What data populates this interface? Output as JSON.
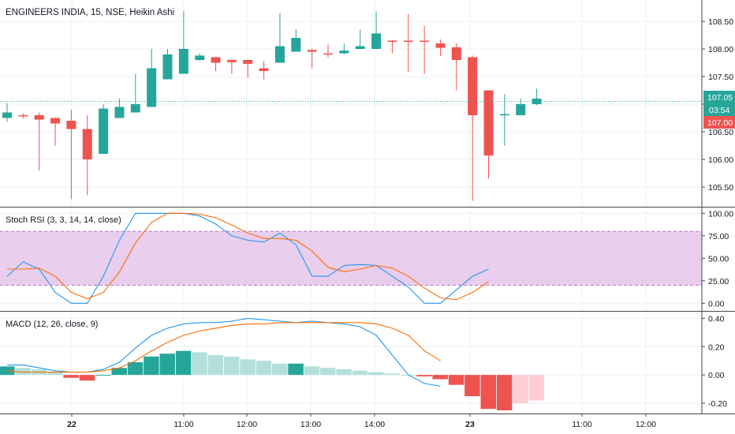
{
  "colors": {
    "up": "#26a69a",
    "down": "#ef5350",
    "macd_up_strong": "#26a69a",
    "macd_up_weak": "#b2dfdb",
    "macd_down_strong": "#ef5350",
    "macd_down_weak": "#ffcdd2",
    "stoch_k": "#2196f3",
    "stoch_d": "#ff6d00",
    "stoch_band": "#e1bee7",
    "stoch_band_line": "#9c27b0",
    "macd_line": "#2196f3",
    "signal_line": "#ff6d00",
    "last_price_line": "#26a69a",
    "grid": "#eef0f3",
    "border": "#434651"
  },
  "price_pane": {
    "title": "ENGINEERS INDIA, 15, NSE, Heikin Ashi",
    "last_price_tag": "107.05",
    "countdown_tag": "03:54",
    "prev_close_tag": "107.00"
  },
  "stoch_pane": {
    "title": "Stoch RSI (3, 3, 14, 14, close)"
  },
  "macd_pane": {
    "title": "MACD (12, 26, close, 9)"
  },
  "chart_data": [
    {
      "type": "candlestick",
      "title": "ENGINEERS INDIA, 15, NSE, Heikin Ashi",
      "ylim": [
        105.2,
        108.8
      ],
      "yticks": [
        "105.50",
        "106.00",
        "106.50",
        "107.00",
        "107.50",
        "108.00",
        "108.50"
      ],
      "x_ticks": [
        "22",
        "11:00",
        "12:00",
        "13:00",
        "14:00",
        "23",
        "11:00",
        "12:00"
      ],
      "last_price": 107.05,
      "candles": [
        {
          "o": 106.75,
          "h": 107.02,
          "l": 106.68,
          "c": 106.85
        },
        {
          "o": 106.8,
          "h": 106.84,
          "l": 106.74,
          "c": 106.79
        },
        {
          "o": 106.8,
          "h": 106.85,
          "l": 105.8,
          "c": 106.72
        },
        {
          "o": 106.75,
          "h": 106.76,
          "l": 106.25,
          "c": 106.65
        },
        {
          "o": 106.7,
          "h": 106.9,
          "l": 105.28,
          "c": 106.55
        },
        {
          "o": 106.55,
          "h": 106.8,
          "l": 105.35,
          "c": 106.0
        },
        {
          "o": 106.1,
          "h": 107.0,
          "l": 106.1,
          "c": 106.92
        },
        {
          "o": 106.75,
          "h": 107.1,
          "l": 106.75,
          "c": 106.95
        },
        {
          "o": 106.85,
          "h": 107.55,
          "l": 106.85,
          "c": 107.0
        },
        {
          "o": 106.95,
          "h": 108.0,
          "l": 106.95,
          "c": 107.65
        },
        {
          "o": 107.45,
          "h": 108.0,
          "l": 107.45,
          "c": 107.9
        },
        {
          "o": 107.55,
          "h": 108.68,
          "l": 107.55,
          "c": 108.0
        },
        {
          "o": 107.8,
          "h": 107.92,
          "l": 107.78,
          "c": 107.88
        },
        {
          "o": 107.85,
          "h": 107.86,
          "l": 107.6,
          "c": 107.75
        },
        {
          "o": 107.8,
          "h": 107.82,
          "l": 107.55,
          "c": 107.76
        },
        {
          "o": 107.8,
          "h": 107.8,
          "l": 107.48,
          "c": 107.73
        },
        {
          "o": 107.65,
          "h": 107.78,
          "l": 107.45,
          "c": 107.6
        },
        {
          "o": 107.75,
          "h": 108.65,
          "l": 107.75,
          "c": 108.05
        },
        {
          "o": 107.95,
          "h": 108.35,
          "l": 107.95,
          "c": 108.2
        },
        {
          "o": 107.98,
          "h": 108.0,
          "l": 107.65,
          "c": 107.95
        },
        {
          "o": 107.92,
          "h": 108.08,
          "l": 107.85,
          "c": 107.9
        },
        {
          "o": 107.92,
          "h": 108.1,
          "l": 107.9,
          "c": 107.97
        },
        {
          "o": 108.0,
          "h": 108.35,
          "l": 108.0,
          "c": 108.05
        },
        {
          "o": 108.0,
          "h": 108.68,
          "l": 108.0,
          "c": 108.28
        },
        {
          "o": 108.15,
          "h": 108.16,
          "l": 107.92,
          "c": 108.14
        },
        {
          "o": 108.15,
          "h": 108.63,
          "l": 107.58,
          "c": 108.13
        },
        {
          "o": 108.15,
          "h": 108.42,
          "l": 107.55,
          "c": 108.13
        },
        {
          "o": 108.1,
          "h": 108.17,
          "l": 107.87,
          "c": 108.02
        },
        {
          "o": 108.03,
          "h": 108.1,
          "l": 107.25,
          "c": 107.8
        },
        {
          "o": 107.85,
          "h": 107.88,
          "l": 105.25,
          "c": 106.8
        },
        {
          "o": 107.25,
          "h": 107.25,
          "l": 105.65,
          "c": 106.07
        },
        {
          "o": 106.8,
          "h": 107.18,
          "l": 106.25,
          "c": 106.82
        },
        {
          "o": 106.8,
          "h": 107.1,
          "l": 106.8,
          "c": 107.0
        },
        {
          "o": 107.0,
          "h": 107.28,
          "l": 106.98,
          "c": 107.1
        }
      ]
    },
    {
      "type": "line",
      "title": "Stoch RSI (3, 3, 14, 14, close)",
      "ylim": [
        -5,
        102
      ],
      "yticks": [
        "100.00",
        "75.00",
        "50.00",
        "25.00",
        "0.00"
      ],
      "bands": [
        80,
        20
      ],
      "series": [
        {
          "name": "K",
          "values": [
            30,
            46,
            38,
            12,
            0,
            0,
            30,
            70,
            100,
            100,
            100,
            100,
            97,
            88,
            75,
            70,
            68,
            78,
            65,
            30,
            30,
            42,
            43,
            42,
            30,
            18,
            0,
            0,
            15,
            30,
            38
          ]
        },
        {
          "name": "D",
          "values": [
            38,
            38,
            39,
            30,
            12,
            5,
            12,
            35,
            67,
            90,
            100,
            100,
            99,
            95,
            87,
            78,
            72,
            72,
            70,
            58,
            40,
            35,
            38,
            42,
            39,
            30,
            17,
            6,
            4,
            12,
            24
          ]
        }
      ]
    },
    {
      "type": "bar",
      "title": "MACD (12, 26, close, 9)",
      "ylim": [
        -0.25,
        0.43
      ],
      "yticks": [
        "0.40",
        "0.20",
        "0.00",
        "-0.20"
      ],
      "histogram": [
        0.06,
        0.05,
        0.04,
        0.02,
        -0.02,
        -0.04,
        0.0,
        0.05,
        0.09,
        0.13,
        0.15,
        0.17,
        0.16,
        0.14,
        0.13,
        0.11,
        0.1,
        0.08,
        0.08,
        0.06,
        0.05,
        0.04,
        0.03,
        0.02,
        0.01,
        0,
        -0.01,
        -0.03,
        -0.07,
        -0.15,
        -0.24,
        -0.25,
        -0.2,
        -0.18
      ],
      "macd": [
        0.07,
        0.07,
        0.05,
        0.03,
        0.02,
        0.02,
        0.04,
        0.09,
        0.19,
        0.28,
        0.33,
        0.36,
        0.37,
        0.37,
        0.38,
        0.4,
        0.39,
        0.38,
        0.37,
        0.38,
        0.37,
        0.36,
        0.34,
        0.28,
        0.14,
        0.0,
        -0.06,
        -0.08
      ],
      "signal": [
        0.03,
        0.02,
        0.02,
        0.02,
        0.02,
        0.02,
        0.03,
        0.05,
        0.1,
        0.17,
        0.23,
        0.28,
        0.31,
        0.33,
        0.35,
        0.36,
        0.36,
        0.37,
        0.37,
        0.37,
        0.37,
        0.37,
        0.37,
        0.36,
        0.33,
        0.28,
        0.17,
        0.1
      ]
    }
  ]
}
